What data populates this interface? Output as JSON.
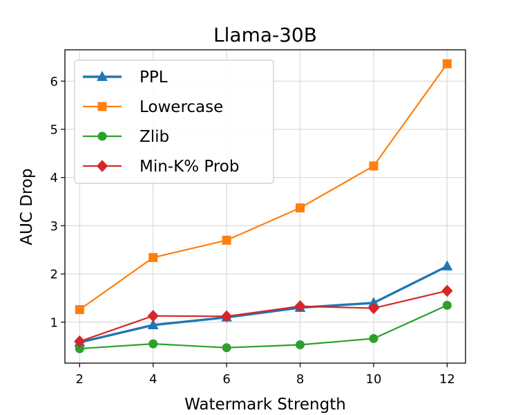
{
  "chart_data": {
    "type": "line",
    "title": "Llama-30B",
    "xlabel": "Watermark Strength",
    "ylabel": "AUC Drop",
    "x": [
      2,
      4,
      6,
      8,
      10,
      12
    ],
    "x_ticks": [
      "2",
      "4",
      "6",
      "8",
      "10",
      "12"
    ],
    "y_ticks": [
      "1",
      "2",
      "3",
      "4",
      "5",
      "6"
    ],
    "xlim": [
      1.6,
      12.5
    ],
    "ylim": [
      0.15,
      6.65
    ],
    "grid": true,
    "legend_position": "upper-left",
    "series": [
      {
        "name": "PPL",
        "color": "#1f77b4",
        "marker": "triangle",
        "linewidth": "thick",
        "values": [
          0.58,
          0.94,
          1.1,
          1.3,
          1.4,
          2.16
        ]
      },
      {
        "name": "Lowercase",
        "color": "#ff7f0e",
        "marker": "square",
        "linewidth": "normal",
        "values": [
          1.26,
          2.34,
          2.7,
          3.37,
          4.24,
          6.36
        ]
      },
      {
        "name": "Zlib",
        "color": "#2ca02c",
        "marker": "circle",
        "linewidth": "normal",
        "values": [
          0.45,
          0.55,
          0.47,
          0.53,
          0.66,
          1.35
        ]
      },
      {
        "name": "Min-K% Prob",
        "color": "#d62728",
        "marker": "diamond",
        "linewidth": "normal",
        "values": [
          0.6,
          1.13,
          1.12,
          1.33,
          1.29,
          1.65
        ]
      }
    ]
  }
}
